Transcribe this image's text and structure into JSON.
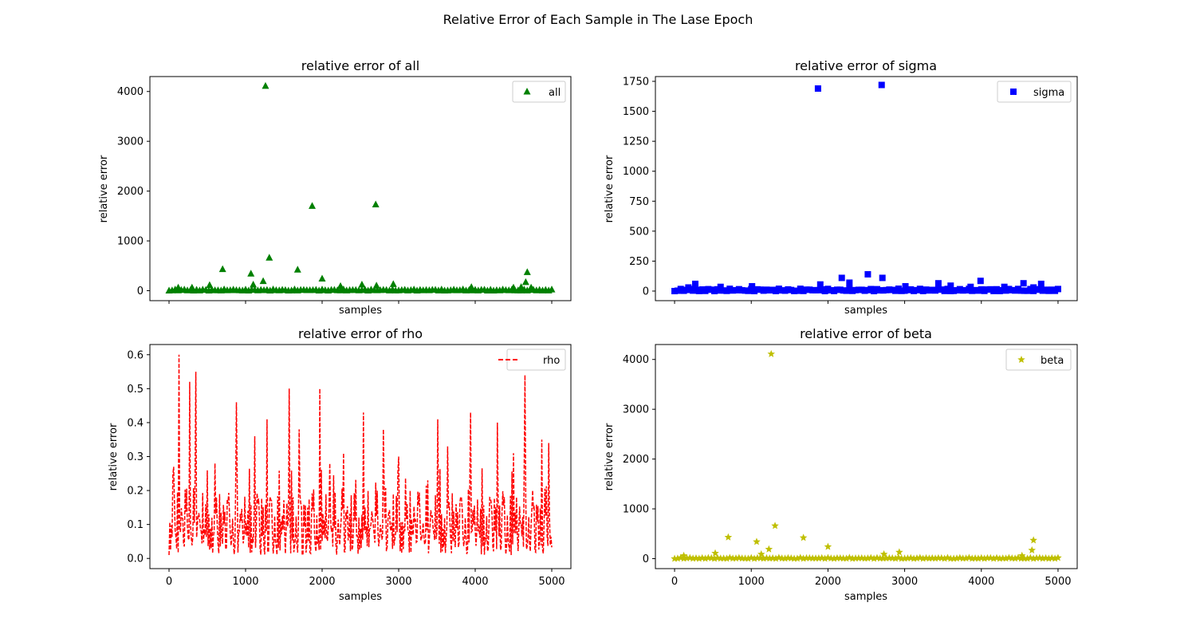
{
  "figure_title": "Relative Error of Each Sample in The Lase Epoch",
  "chart_data": [
    {
      "id": "all",
      "type": "scatter",
      "title": "relative error of all",
      "xlabel": "samples",
      "ylabel": "relative error",
      "xlim": [
        -250,
        5250
      ],
      "ylim": [
        -200,
        4300
      ],
      "yticks": [
        0,
        1000,
        2000,
        3000,
        4000
      ],
      "xticks": [
        0,
        1000,
        2000,
        3000,
        4000,
        5000
      ],
      "xtick_labels_shown": false,
      "grid": false,
      "legend": {
        "label": "all",
        "position": "top-right"
      },
      "marker": "triangle",
      "color": "#008000",
      "series": [
        {
          "name": "all",
          "outliers": [
            [
              1260,
              4110
            ],
            [
              1870,
              1700
            ],
            [
              2700,
              1730
            ],
            [
              1310,
              660
            ],
            [
              700,
              430
            ],
            [
              1070,
              340
            ],
            [
              1680,
              420
            ],
            [
              2000,
              240
            ],
            [
              1230,
              190
            ],
            [
              530,
              110
            ],
            [
              1100,
              120
            ],
            [
              4680,
              370
            ],
            [
              4660,
              170
            ],
            [
              2930,
              130
            ],
            [
              2520,
              120
            ],
            [
              2240,
              90
            ],
            [
              2710,
              100
            ],
            [
              120,
              60
            ],
            [
              300,
              60
            ],
            [
              3950,
              70
            ],
            [
              4500,
              60
            ],
            [
              4600,
              70
            ],
            [
              4730,
              60
            ]
          ],
          "baseline": {
            "from": 0,
            "to": 5000,
            "step": 40,
            "max": 25
          }
        }
      ]
    },
    {
      "id": "sigma",
      "type": "scatter",
      "title": "relative error of sigma",
      "xlabel": "samples",
      "ylabel": "relative error",
      "xlim": [
        -250,
        5250
      ],
      "ylim": [
        -80,
        1790
      ],
      "yticks": [
        0,
        250,
        500,
        750,
        1000,
        1250,
        1500,
        1750
      ],
      "xticks": [
        0,
        1000,
        2000,
        3000,
        4000,
        5000
      ],
      "xtick_labels_shown": false,
      "grid": false,
      "legend": {
        "label": "sigma",
        "position": "top-right"
      },
      "marker": "square",
      "color": "#0000ff",
      "series": [
        {
          "name": "sigma",
          "outliers": [
            [
              1870,
              1690
            ],
            [
              2700,
              1720
            ],
            [
              2180,
              110
            ],
            [
              2520,
              140
            ],
            [
              2710,
              110
            ],
            [
              3990,
              85
            ],
            [
              2280,
              70
            ],
            [
              270,
              60
            ],
            [
              1900,
              55
            ],
            [
              3440,
              65
            ],
            [
              4550,
              65
            ],
            [
              4780,
              60
            ],
            [
              1010,
              40
            ],
            [
              3600,
              45
            ],
            [
              4300,
              35
            ],
            [
              3010,
              40
            ],
            [
              600,
              35
            ],
            [
              180,
              30
            ],
            [
              3860,
              35
            ],
            [
              4680,
              30
            ]
          ],
          "baseline": {
            "from": 0,
            "to": 5000,
            "step": 40,
            "max": 20
          }
        }
      ]
    },
    {
      "id": "rho",
      "type": "line",
      "title": "relative error of rho",
      "xlabel": "samples",
      "ylabel": "relative error",
      "xlim": [
        -250,
        5250
      ],
      "ylim": [
        -0.03,
        0.63
      ],
      "yticks": [
        0.0,
        0.1,
        0.2,
        0.3,
        0.4,
        0.5,
        0.6
      ],
      "xticks": [
        0,
        1000,
        2000,
        3000,
        4000,
        5000
      ],
      "xtick_labels_shown": true,
      "grid": false,
      "legend": {
        "label": "rho",
        "position": "top-right"
      },
      "line_style": "dashed",
      "color": "#ff0000",
      "series": [
        {
          "name": "rho",
          "peaks": [
            [
              130,
              0.6
            ],
            [
              350,
              0.55
            ],
            [
              270,
              0.52
            ],
            [
              875,
              0.46
            ],
            [
              1570,
              0.5
            ],
            [
              1970,
              0.5
            ],
            [
              4650,
              0.54
            ],
            [
              3940,
              0.43
            ],
            [
              2540,
              0.43
            ],
            [
              3510,
              0.41
            ],
            [
              1280,
              0.41
            ],
            [
              4290,
              0.4
            ],
            [
              1700,
              0.38
            ],
            [
              2800,
              0.38
            ],
            [
              1120,
              0.36
            ],
            [
              4870,
              0.35
            ],
            [
              4960,
              0.34
            ],
            [
              3640,
              0.33
            ],
            [
              2280,
              0.31
            ],
            [
              3000,
              0.3
            ],
            [
              4500,
              0.31
            ],
            [
              600,
              0.28
            ],
            [
              60,
              0.27
            ],
            [
              2100,
              0.28
            ]
          ],
          "baseline": {
            "from": 0,
            "to": 5000,
            "step": 10,
            "max": 0.26
          }
        }
      ]
    },
    {
      "id": "beta",
      "type": "scatter",
      "title": "relative error of beta",
      "xlabel": "samples",
      "ylabel": "relative error",
      "xlim": [
        -250,
        5250
      ],
      "ylim": [
        -200,
        4300
      ],
      "yticks": [
        0,
        1000,
        2000,
        3000,
        4000
      ],
      "xticks": [
        0,
        1000,
        2000,
        3000,
        4000,
        5000
      ],
      "xtick_labels_shown": true,
      "grid": false,
      "legend": {
        "label": "beta",
        "position": "top-right"
      },
      "marker": "star",
      "color": "#bfbf00",
      "series": [
        {
          "name": "beta",
          "outliers": [
            [
              1260,
              4110
            ],
            [
              1310,
              660
            ],
            [
              700,
              430
            ],
            [
              1680,
              420
            ],
            [
              1070,
              340
            ],
            [
              2000,
              240
            ],
            [
              1230,
              190
            ],
            [
              530,
              110
            ],
            [
              4680,
              370
            ],
            [
              4660,
              170
            ],
            [
              2930,
              130
            ],
            [
              2730,
              90
            ],
            [
              1130,
              90
            ],
            [
              120,
              60
            ],
            [
              4530,
              60
            ]
          ],
          "baseline": {
            "from": 0,
            "to": 5000,
            "step": 40,
            "max": 20
          }
        }
      ]
    }
  ]
}
